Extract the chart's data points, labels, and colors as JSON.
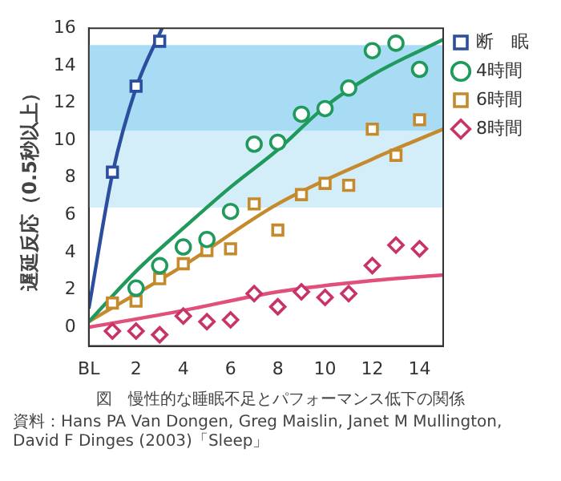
{
  "chart_data": {
    "type": "scatter",
    "title": "図　慢性的な睡眠不足とパフォーマンス低下の関係",
    "ylabel": "遅延反応（0.5秒以上）",
    "annotations": [
      "資料：Hans PA Van Dongen, Greg Maislin, Janet M Mullington, David F Dinges (2003)「Sleep」"
    ],
    "xlim": [
      0,
      15
    ],
    "xticks": [
      {
        "value": 0,
        "label": "BL"
      },
      2,
      4,
      6,
      8,
      10,
      12,
      14
    ],
    "ylim": [
      -1,
      16
    ],
    "yticks": [
      0,
      2,
      4,
      6,
      8,
      10,
      12,
      14,
      16
    ],
    "grid": false,
    "legend": "top right",
    "bands": [
      {
        "axis": "y",
        "from": 10.5,
        "to": 15.1,
        "color": "#a8dcf4"
      },
      {
        "axis": "y",
        "from": 6.4,
        "to": 10.5,
        "color": "#d3edf9"
      }
    ],
    "series": [
      {
        "name": "断　眠",
        "marker": "square",
        "color": "#2b4e9e",
        "x": [
          1,
          2,
          3
        ],
        "values": [
          8.3,
          12.9,
          15.3
        ]
      },
      {
        "name": "4時間",
        "marker": "circle",
        "color": "#1f9a5c",
        "x": [
          2,
          3,
          4,
          5,
          6,
          7,
          8,
          9,
          10,
          11,
          12,
          13,
          14
        ],
        "values": [
          2.1,
          3.3,
          4.3,
          4.7,
          6.2,
          9.8,
          9.9,
          11.4,
          11.7,
          12.8,
          14.8,
          15.2,
          13.8
        ]
      },
      {
        "name": "6時間",
        "marker": "square",
        "color": "#c48a2c",
        "x": [
          1,
          2,
          3,
          4,
          5,
          6,
          7,
          8,
          9,
          10,
          11,
          12,
          13,
          14
        ],
        "values": [
          1.3,
          1.4,
          2.6,
          3.4,
          4.1,
          4.2,
          6.6,
          5.2,
          7.1,
          7.7,
          7.6,
          10.6,
          9.2,
          11.1
        ]
      },
      {
        "name": "8時間",
        "marker": "diamond",
        "color": "#c8336a",
        "x": [
          1,
          2,
          3,
          4,
          5,
          6,
          7,
          8,
          9,
          10,
          11,
          12,
          13,
          14
        ],
        "values": [
          -0.2,
          -0.2,
          -0.4,
          0.6,
          0.3,
          0.4,
          1.8,
          1.1,
          1.9,
          1.6,
          1.8,
          3.3,
          4.4,
          4.2
        ]
      },
      {
        "type": "line",
        "color": "#2b4e9e",
        "x": [
          0,
          1,
          2,
          3.1
        ],
        "values": [
          1,
          8.2,
          12.8,
          16
        ]
      },
      {
        "type": "line",
        "color": "#1f9a5c",
        "x": [
          0,
          2,
          4,
          6,
          8,
          10,
          12,
          15
        ],
        "values": [
          0.3,
          3,
          5.3,
          7.5,
          9.5,
          11.8,
          13.5,
          15.4
        ]
      },
      {
        "type": "line",
        "color": "#c48a2c",
        "x": [
          0,
          4,
          8,
          12,
          15
        ],
        "values": [
          0.3,
          3.3,
          6.6,
          9,
          10.6
        ]
      },
      {
        "type": "line",
        "color": "#e0507a",
        "x": [
          0,
          4,
          8,
          12,
          15
        ],
        "values": [
          0,
          0.9,
          1.9,
          2.5,
          2.8
        ]
      }
    ]
  }
}
